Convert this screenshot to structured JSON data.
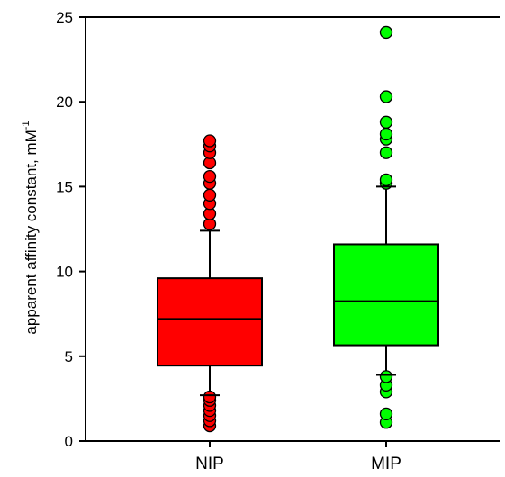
{
  "chart_data": {
    "type": "box",
    "categories": [
      "NIP",
      "MIP"
    ],
    "xlabel": "",
    "ylabel": "apparent affinity constant, mM",
    "ylabel_superscript": "-1",
    "ylim": [
      0,
      25
    ],
    "yticks": [
      0,
      5,
      10,
      15,
      20,
      25
    ],
    "grid": false,
    "legend": "none",
    "boxes": [
      {
        "category": "NIP",
        "color": "#ff0000",
        "whisker_low": 2.7,
        "q1": 4.45,
        "median": 7.2,
        "q3": 9.6,
        "whisker_high": 12.4,
        "outliers": [
          0.9,
          1.2,
          1.5,
          1.8,
          2.1,
          2.4,
          2.6,
          12.8,
          13.4,
          14.0,
          14.5,
          15.2,
          15.6,
          16.4,
          17.0,
          17.4,
          17.7
        ]
      },
      {
        "category": "MIP",
        "color": "#00ff00",
        "whisker_low": 3.9,
        "q1": 5.65,
        "median": 8.25,
        "q3": 11.6,
        "whisker_high": 15.0,
        "outliers": [
          1.1,
          1.6,
          2.9,
          3.3,
          3.8,
          15.2,
          15.4,
          17.0,
          17.8,
          18.1,
          18.8,
          20.3,
          24.1
        ]
      }
    ]
  }
}
